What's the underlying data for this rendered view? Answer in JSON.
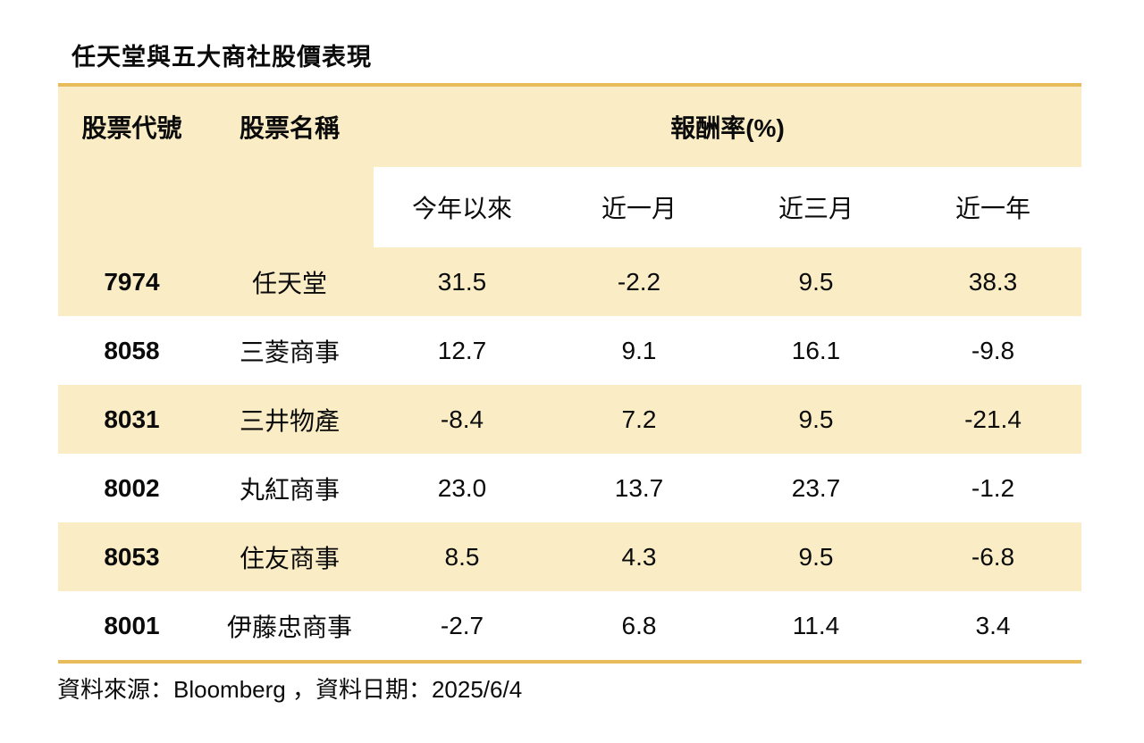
{
  "title": "任天堂與五大商社股價表現",
  "chart_data": {
    "type": "table",
    "title": "任天堂與五大商社股價表現",
    "header": {
      "code_label": "股票代號",
      "name_label": "股票名稱",
      "returns_label": "報酬率(%)"
    },
    "period_headers": [
      "今年以來",
      "近一月",
      "近三月",
      "近一年"
    ],
    "rows": [
      {
        "code": "7974",
        "name": "任天堂",
        "values": [
          "31.5",
          "-2.2",
          "9.5",
          "38.3"
        ]
      },
      {
        "code": "8058",
        "name": "三菱商事",
        "values": [
          "12.7",
          "9.1",
          "16.1",
          "-9.8"
        ]
      },
      {
        "code": "8031",
        "name": "三井物產",
        "values": [
          "-8.4",
          "7.2",
          "9.5",
          "-21.4"
        ]
      },
      {
        "code": "8002",
        "name": "丸紅商事",
        "values": [
          "23.0",
          "13.7",
          "23.7",
          "-1.2"
        ]
      },
      {
        "code": "8053",
        "name": "住友商事",
        "values": [
          "8.5",
          "4.3",
          "9.5",
          "-6.8"
        ]
      },
      {
        "code": "8001",
        "name": "伊藤忠商事",
        "values": [
          "-2.7",
          "6.8",
          "11.4",
          "3.4"
        ]
      }
    ]
  },
  "footer": {
    "source_text": "資料來源：Bloomberg ，資料日期：2025/6/4"
  },
  "colors": {
    "row_highlight": "#FAEDC6",
    "accent_line": "#E9BC5B"
  }
}
